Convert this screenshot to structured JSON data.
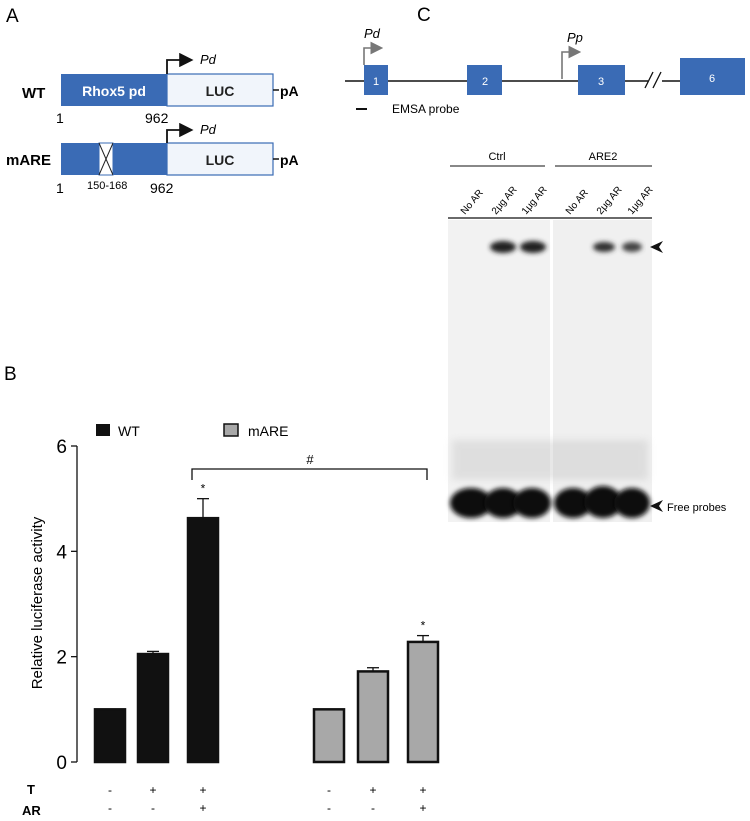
{
  "panel_a": {
    "letter": "A",
    "wt": {
      "label": "WT",
      "promoter": "Rhox5 pd",
      "reporter": "LUC",
      "polyA": "pA",
      "start": "1",
      "end": "962",
      "tss": "Pd"
    },
    "mare": {
      "label": "mARE",
      "reporter": "LUC",
      "polyA": "pA",
      "start": "1",
      "mutation": "150-168",
      "end": "962",
      "tss": "Pd"
    }
  },
  "panel_c": {
    "letter": "C",
    "exons": [
      "1",
      "2",
      "3",
      "6"
    ],
    "promoters": [
      "Pd",
      "Pp"
    ],
    "probe_label": "EMSA probe",
    "groups": [
      "Ctrl",
      "ARE2"
    ],
    "lanes": [
      "No AR",
      "2μg AR",
      "1μg AR",
      "No AR",
      "2μg AR",
      "1μg AR"
    ],
    "free_probes_label": "Free probes",
    "colors": {
      "exon": "#3a6bb5",
      "gel_bg": "#f2f2f2",
      "band": "#0a0a0a"
    }
  },
  "panel_b": {
    "letter": "B"
  },
  "chart_data": {
    "type": "bar",
    "ylabel": "Relative luciferase activity",
    "ylim": [
      0,
      6
    ],
    "yticks": [
      0,
      2,
      4,
      6
    ],
    "series": [
      {
        "name": "WT",
        "color": "#111111",
        "values": [
          1.0,
          2.05,
          4.63
        ],
        "errors": [
          0,
          0.05,
          0.37
        ],
        "stars": [
          "",
          "",
          "*"
        ]
      },
      {
        "name": "mARE",
        "color": "#a8a8a8",
        "values": [
          1.0,
          1.72,
          2.28
        ],
        "errors": [
          0,
          0.07,
          0.12
        ],
        "stars": [
          "",
          "",
          "*"
        ]
      }
    ],
    "bracket_label": "#",
    "condition_rows": [
      {
        "label": "T",
        "values": [
          "-",
          "+",
          "+",
          "-",
          "+",
          "+"
        ]
      },
      {
        "label": "AR",
        "values": [
          "-",
          "-",
          "+",
          "-",
          "-",
          "+"
        ]
      }
    ]
  }
}
